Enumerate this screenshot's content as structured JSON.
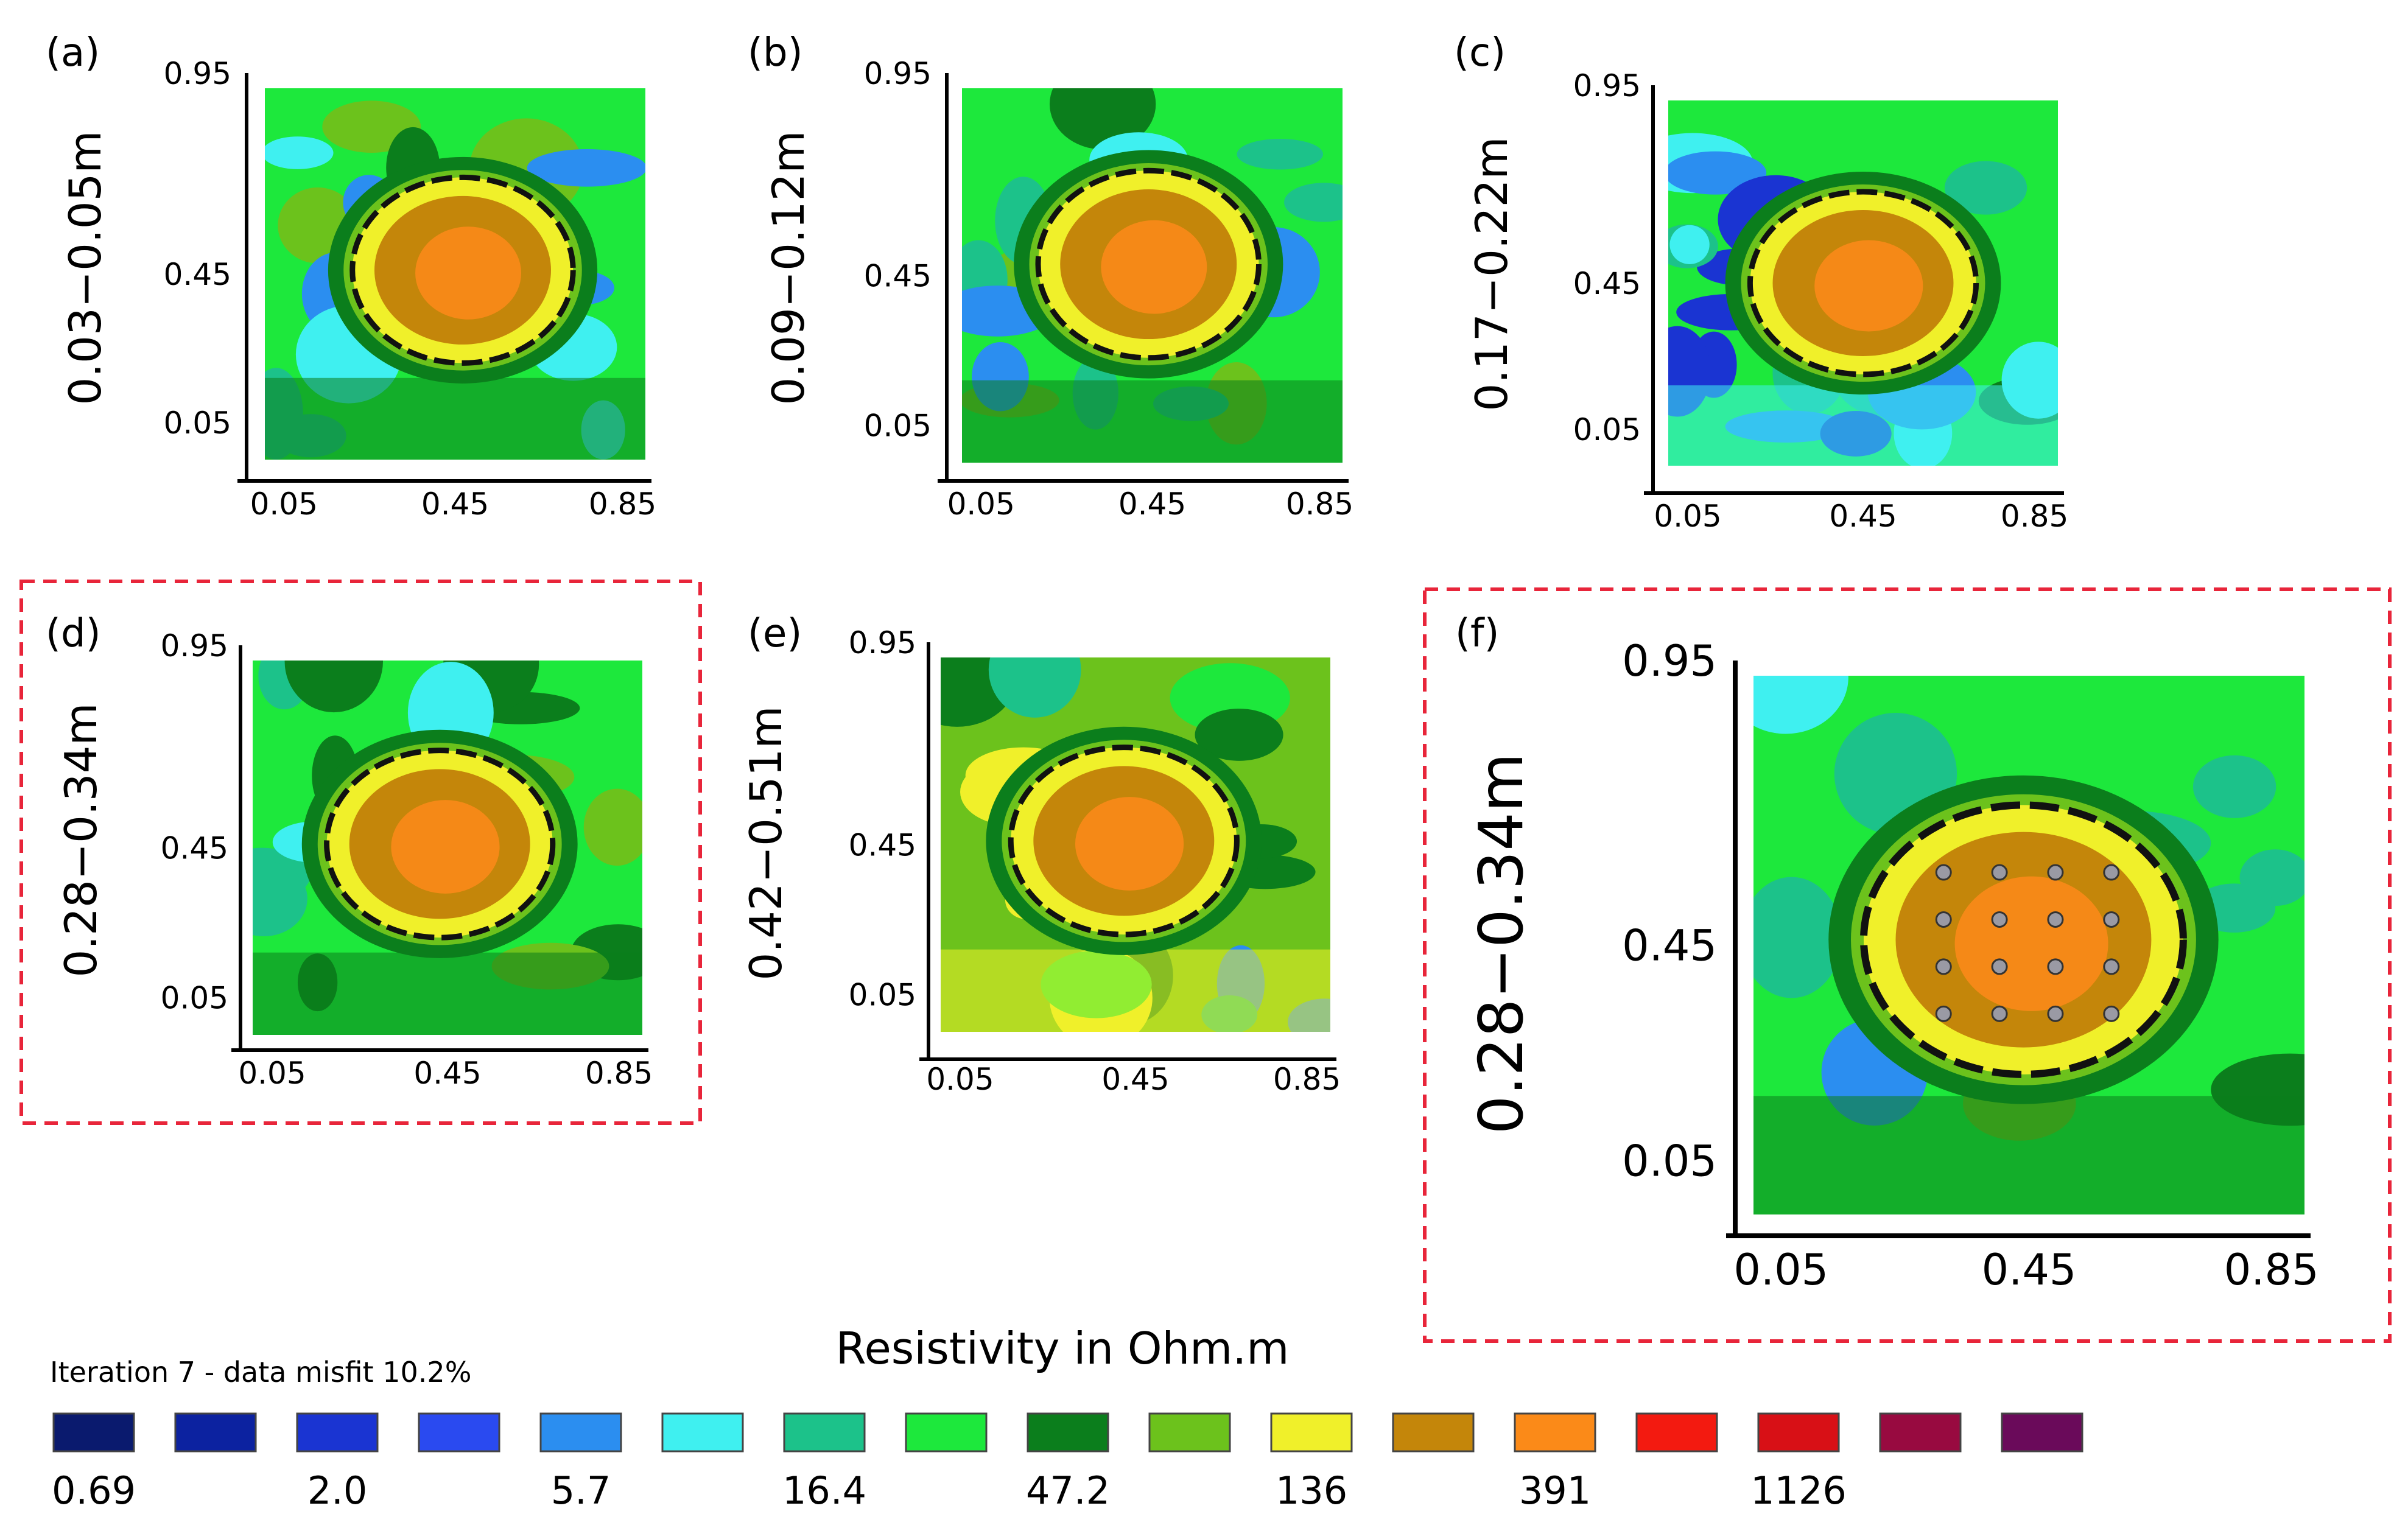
{
  "chart_data": [
    {
      "type": "heatmap",
      "panel": "(a)",
      "depth_label": "0.03−0.05m",
      "x_ticks": [
        "0.05",
        "0.45",
        "0.85"
      ],
      "y_ticks": [
        "0.95",
        "0.45",
        "0.05"
      ],
      "background": "moderate",
      "anomaly": {
        "cx": 0.52,
        "cy": 0.49,
        "rx": 0.29,
        "ry": 0.25,
        "core": "391"
      },
      "dashed_outline": true,
      "highlighted": false
    },
    {
      "type": "heatmap",
      "panel": "(b)",
      "depth_label": "0.09−0.12m",
      "x_ticks": [
        "0.05",
        "0.45",
        "0.85"
      ],
      "y_ticks": [
        "0.95",
        "0.45",
        "0.05"
      ],
      "background": "moderate",
      "anomaly": {
        "cx": 0.49,
        "cy": 0.47,
        "rx": 0.29,
        "ry": 0.25,
        "core": "391"
      },
      "dashed_outline": true,
      "highlighted": false
    },
    {
      "type": "heatmap",
      "panel": "(c)",
      "depth_label": "0.17−0.22m",
      "x_ticks": [
        "0.05",
        "0.45",
        "0.85"
      ],
      "y_ticks": [
        "0.95",
        "0.45",
        "0.05"
      ],
      "background": "low",
      "anomaly": {
        "cx": 0.5,
        "cy": 0.5,
        "rx": 0.29,
        "ry": 0.25,
        "core": "391"
      },
      "dashed_outline": true,
      "highlighted": false
    },
    {
      "type": "heatmap",
      "panel": "(d)",
      "depth_label": "0.28−0.34m",
      "x_ticks": [
        "0.05",
        "0.45",
        "0.85"
      ],
      "y_ticks": [
        "0.95",
        "0.45",
        "0.05"
      ],
      "background": "moderate",
      "anomaly": {
        "cx": 0.48,
        "cy": 0.49,
        "rx": 0.29,
        "ry": 0.25,
        "core": "391"
      },
      "dashed_outline": true,
      "highlighted": true
    },
    {
      "type": "heatmap",
      "panel": "(e)",
      "depth_label": "0.42−0.51m",
      "x_ticks": [
        "0.05",
        "0.45",
        "0.85"
      ],
      "y_ticks": [
        "0.95",
        "0.45",
        "0.05"
      ],
      "background": "high",
      "anomaly": {
        "cx": 0.47,
        "cy": 0.49,
        "rx": 0.29,
        "ry": 0.25,
        "core": "391"
      },
      "dashed_outline": true,
      "highlighted": false
    },
    {
      "type": "heatmap",
      "panel": "(f)",
      "depth_label": "0.28−0.34m",
      "x_ticks": [
        "0.05",
        "0.45",
        "0.85"
      ],
      "y_ticks": [
        "0.95",
        "0.45",
        "0.05"
      ],
      "background": "moderate",
      "anomaly": {
        "cx": 0.49,
        "cy": 0.49,
        "rx": 0.29,
        "ry": 0.25,
        "core": "391"
      },
      "dashed_outline": true,
      "highlighted": true,
      "electrode_grid": {
        "rows": 4,
        "cols": 4
      }
    }
  ],
  "colorbar": {
    "title": "Resistivity in Ohm.m",
    "subtitle": "Iteration 7 - data misfit 10.2%",
    "colors": [
      "#0a1a6e",
      "#0c22a0",
      "#1a34d2",
      "#2a4af0",
      "#2b8ef0",
      "#3ff0f0",
      "#1cc28a",
      "#1de83c",
      "#0b7e1c",
      "#6cc21c",
      "#f0f02a",
      "#c4860a",
      "#fb8a18",
      "#f31a10",
      "#d81016",
      "#980a40",
      "#6a0a5a"
    ],
    "ticks": [
      "0.69",
      "2.0",
      "5.7",
      "16.4",
      "47.2",
      "136",
      "391",
      "1126"
    ]
  },
  "palette": {
    "highlight_frame": "#e8253a",
    "class_colors": {
      "low": "#2b8ef0",
      "lowest": "#1a34d2",
      "cyan": "#3ff0f0",
      "teal": "#1cc28a",
      "green": "#1de83c",
      "dark": "#0b7e1c",
      "lime": "#6cc21c",
      "yellow": "#f0f02a",
      "brown": "#c4860a",
      "orange": "#fb8a18"
    }
  }
}
